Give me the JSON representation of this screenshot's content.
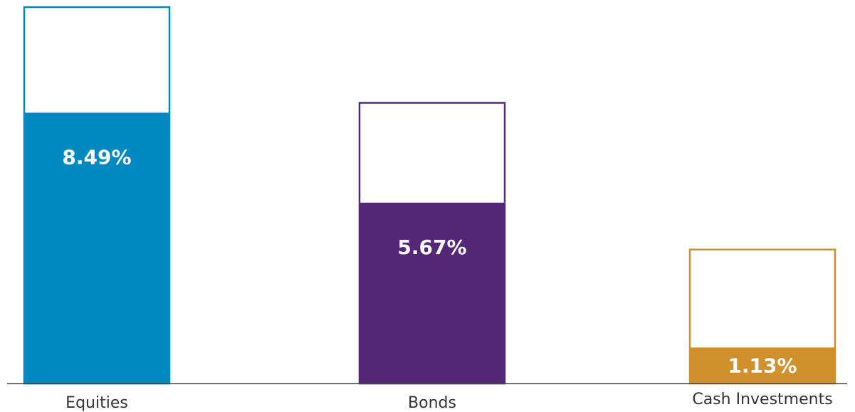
{
  "chart_data": {
    "type": "bar",
    "categories": [
      "Equities",
      "Bonds",
      "Cash Investments"
    ],
    "series": [
      {
        "values": [
          8.49,
          5.67,
          1.13
        ],
        "labels": [
          "8.49%",
          "5.67%",
          "1.13%"
        ]
      },
      {
        "values": [
          11.8,
          8.8,
          4.2
        ]
      }
    ],
    "colors": [
      "#0088c0",
      "#552877",
      "#d0902c"
    ],
    "title": "",
    "xlabel": "",
    "ylabel": "",
    "ylim": [
      0,
      11.8
    ],
    "grid": false,
    "legend": "none"
  }
}
